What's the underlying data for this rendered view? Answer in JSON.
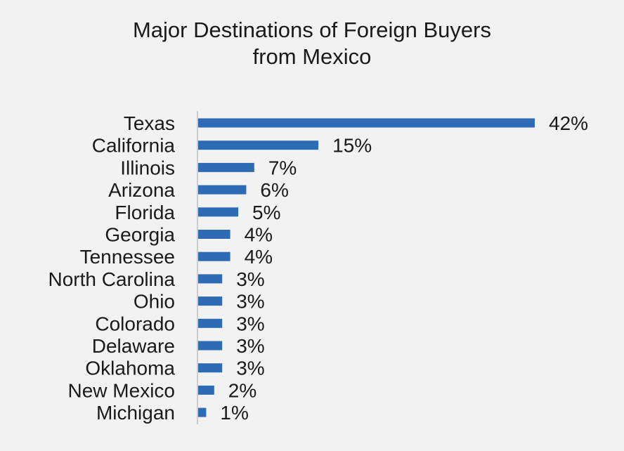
{
  "chart_data": {
    "type": "bar",
    "orientation": "horizontal",
    "title_lines": [
      "Major Destinations of Foreign Buyers",
      "from Mexico"
    ],
    "categories": [
      "Texas",
      "California",
      "Illinois",
      "Arizona",
      "Florida",
      "Georgia",
      "Tennessee",
      "North Carolina",
      "Ohio",
      "Colorado",
      "Delaware",
      "Oklahoma",
      "New Mexico",
      "Michigan"
    ],
    "values": [
      42,
      15,
      7,
      6,
      5,
      4,
      4,
      3,
      3,
      3,
      3,
      3,
      2,
      1
    ],
    "value_labels": [
      "42%",
      "15%",
      "7%",
      "6%",
      "5%",
      "4%",
      "4%",
      "3%",
      "3%",
      "3%",
      "3%",
      "3%",
      "2%",
      "1%"
    ],
    "xlim": [
      0,
      42
    ],
    "grid": false,
    "legend": "none",
    "colors": {
      "bar": "#2e6bb5",
      "axis": "#cccccc",
      "background": "#f2f2f2",
      "text": "#1a1a1a"
    }
  }
}
